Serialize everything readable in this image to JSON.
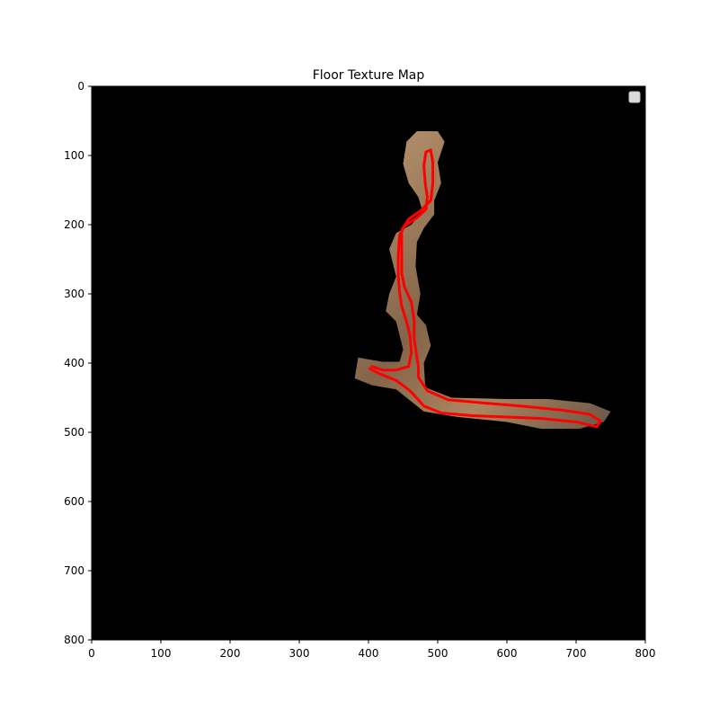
{
  "chart_data": {
    "type": "image",
    "title": "Floor Texture Map",
    "xlabel": "",
    "ylabel": "",
    "xlim": [
      0,
      800
    ],
    "ylim": [
      800,
      0
    ],
    "x_ticks": [
      0,
      100,
      200,
      300,
      400,
      500,
      600,
      700,
      800
    ],
    "y_ticks": [
      0,
      100,
      200,
      300,
      400,
      500,
      600,
      700,
      800
    ],
    "background_color": "#000000",
    "trajectory_color": "#ff0000",
    "legend": {
      "placement": "top-right",
      "entries": []
    },
    "trajectory": [
      [
        405,
        405
      ],
      [
        420,
        410
      ],
      [
        440,
        410
      ],
      [
        458,
        405
      ],
      [
        462,
        385
      ],
      [
        460,
        360
      ],
      [
        455,
        340
      ],
      [
        448,
        318
      ],
      [
        445,
        298
      ],
      [
        443,
        275
      ],
      [
        443,
        245
      ],
      [
        445,
        215
      ],
      [
        452,
        202
      ],
      [
        470,
        190
      ],
      [
        483,
        178
      ],
      [
        485,
        160
      ],
      [
        482,
        140
      ],
      [
        480,
        115
      ],
      [
        483,
        95
      ],
      [
        490,
        92
      ],
      [
        493,
        110
      ],
      [
        493,
        140
      ],
      [
        490,
        165
      ],
      [
        475,
        180
      ],
      [
        458,
        192
      ],
      [
        448,
        208
      ],
      [
        448,
        240
      ],
      [
        448,
        270
      ],
      [
        452,
        290
      ],
      [
        462,
        312
      ],
      [
        466,
        338
      ],
      [
        466,
        365
      ],
      [
        469,
        385
      ],
      [
        472,
        405
      ],
      [
        472,
        420
      ],
      [
        485,
        440
      ],
      [
        515,
        453
      ],
      [
        570,
        458
      ],
      [
        620,
        462
      ],
      [
        680,
        468
      ],
      [
        720,
        474
      ],
      [
        735,
        484
      ],
      [
        730,
        492
      ],
      [
        700,
        485
      ],
      [
        650,
        480
      ],
      [
        600,
        478
      ],
      [
        550,
        476
      ],
      [
        505,
        472
      ],
      [
        480,
        462
      ],
      [
        460,
        440
      ],
      [
        440,
        425
      ],
      [
        415,
        415
      ],
      [
        402,
        408
      ]
    ],
    "floor_regions": [
      [
        [
          470,
          65
        ],
        [
          500,
          65
        ],
        [
          510,
          80
        ],
        [
          500,
          110
        ],
        [
          505,
          140
        ],
        [
          495,
          165
        ],
        [
          495,
          185
        ],
        [
          480,
          205
        ],
        [
          470,
          225
        ],
        [
          468,
          260
        ],
        [
          475,
          300
        ],
        [
          470,
          330
        ],
        [
          483,
          345
        ],
        [
          490,
          375
        ],
        [
          480,
          400
        ],
        [
          482,
          435
        ],
        [
          520,
          450
        ],
        [
          600,
          452
        ],
        [
          660,
          452
        ],
        [
          720,
          458
        ],
        [
          750,
          470
        ],
        [
          740,
          485
        ],
        [
          705,
          495
        ],
        [
          650,
          495
        ],
        [
          600,
          485
        ],
        [
          530,
          478
        ],
        [
          480,
          470
        ],
        [
          440,
          438
        ],
        [
          405,
          432
        ],
        [
          380,
          422
        ],
        [
          385,
          392
        ],
        [
          420,
          398
        ],
        [
          445,
          398
        ],
        [
          450,
          380
        ],
        [
          440,
          340
        ],
        [
          425,
          325
        ],
        [
          430,
          300
        ],
        [
          440,
          275
        ],
        [
          430,
          235
        ],
        [
          440,
          212
        ],
        [
          462,
          200
        ],
        [
          478,
          180
        ],
        [
          472,
          160
        ],
        [
          458,
          140
        ],
        [
          450,
          112
        ],
        [
          455,
          80
        ]
      ]
    ]
  }
}
